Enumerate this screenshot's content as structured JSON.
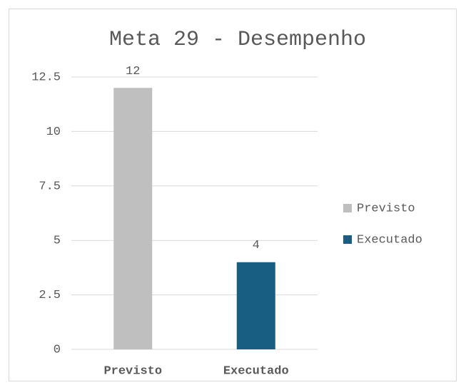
{
  "chart_data": {
    "type": "bar",
    "title": "Meta 29 - Desempenho",
    "categories": [
      "Previsto",
      "Executado"
    ],
    "values": [
      12,
      4
    ],
    "colors": [
      "#bfbfbf",
      "#175e82"
    ],
    "ylim": [
      0,
      12.5
    ],
    "yticks": [
      0,
      2.5,
      5,
      7.5,
      10,
      12.5
    ],
    "grid": true,
    "legend": "right"
  }
}
